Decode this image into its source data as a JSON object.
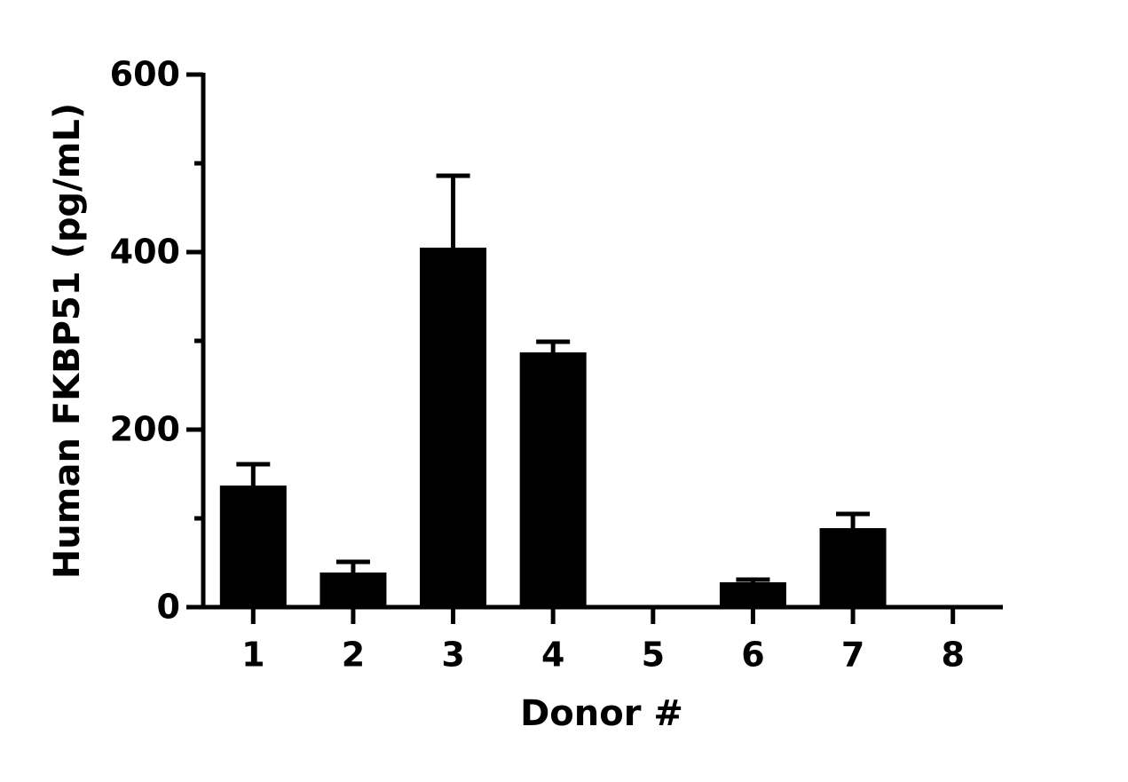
{
  "chart_data": {
    "type": "bar",
    "x_label": "Donor #",
    "y_label": "Human FKBP51 (pg/mL)",
    "categories": [
      "1",
      "2",
      "3",
      "4",
      "5",
      "6",
      "7",
      "8"
    ],
    "values": [
      137,
      39,
      405,
      287,
      0,
      28,
      89,
      0
    ],
    "errors": [
      24,
      12,
      81,
      12,
      0,
      3,
      16,
      0
    ],
    "color": "#000000",
    "ylim": [
      0,
      600
    ],
    "yticks": [
      0,
      200,
      400,
      600
    ],
    "yminorticks": [
      100,
      300,
      500
    ],
    "grid": false
  }
}
